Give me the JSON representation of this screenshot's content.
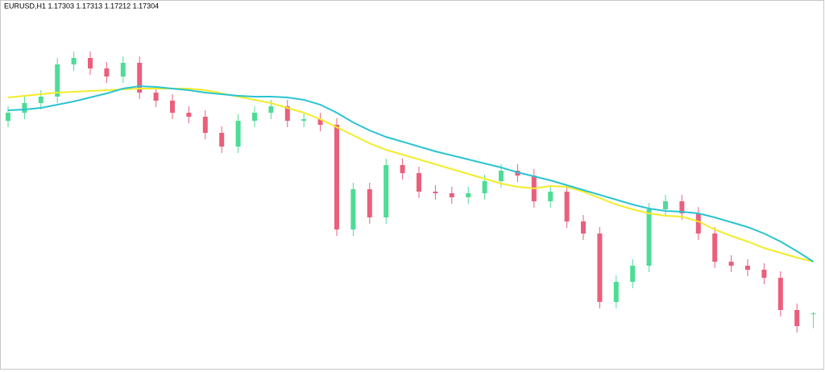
{
  "chart_data": {
    "type": "candlestick",
    "title": "EURUSD,H1  1.17303 1.17313 1.17212 1.17304",
    "up_color": "#4ddc96",
    "down_color": "#ea5f7c",
    "ylim": [
      1.1695,
      1.1925
    ],
    "open": [
      1.185,
      1.1855,
      1.1861,
      1.1865,
      1.1885,
      1.1889,
      1.18825,
      1.18775,
      1.1886,
      1.18675,
      1.18625,
      1.1855,
      1.18525,
      1.18425,
      1.1834,
      1.185,
      1.1855,
      1.1859,
      1.185,
      1.1851,
      1.18475,
      1.17825,
      1.18075,
      1.179,
      1.18225,
      1.18175,
      1.1806,
      1.1805,
      1.18025,
      1.1805,
      1.18125,
      1.1819,
      1.1816,
      1.18,
      1.1806,
      1.17875,
      1.178,
      1.17375,
      1.175,
      1.176,
      1.1795,
      1.18,
      1.17925,
      1.178,
      1.17625,
      1.176,
      1.17575,
      1.17525,
      1.17325,
      1.17303
    ],
    "high": [
      1.1859,
      1.1865,
      1.1869,
      1.1889,
      1.1893,
      1.1893,
      1.18865,
      1.189,
      1.189,
      1.18715,
      1.18665,
      1.1859,
      1.18565,
      1.18465,
      1.1854,
      1.1859,
      1.1863,
      1.1863,
      1.1855,
      1.1855,
      1.18515,
      1.18115,
      1.18115,
      1.18265,
      1.18265,
      1.18215,
      1.181,
      1.1809,
      1.1809,
      1.18165,
      1.1823,
      1.1823,
      1.182,
      1.181,
      1.181,
      1.17915,
      1.1784,
      1.1754,
      1.1764,
      1.1799,
      1.1804,
      1.1804,
      1.17965,
      1.1784,
      1.17665,
      1.1764,
      1.17615,
      1.17565,
      1.17365,
      1.17313
    ],
    "low": [
      1.1846,
      1.1851,
      1.1857,
      1.1861,
      1.1881,
      1.18785,
      1.18735,
      1.18735,
      1.18635,
      1.18585,
      1.1851,
      1.18485,
      1.18385,
      1.183,
      1.183,
      1.1846,
      1.1851,
      1.1846,
      1.1846,
      1.18435,
      1.17785,
      1.17785,
      1.1786,
      1.1786,
      1.18135,
      1.1802,
      1.1801,
      1.17985,
      1.17985,
      1.1801,
      1.18085,
      1.1812,
      1.1796,
      1.1796,
      1.17835,
      1.1776,
      1.17335,
      1.17335,
      1.1746,
      1.1756,
      1.1791,
      1.17885,
      1.1776,
      1.17585,
      1.1756,
      1.17535,
      1.17485,
      1.17285,
      1.17185,
      1.17212
    ],
    "close": [
      1.1855,
      1.1861,
      1.1865,
      1.1885,
      1.1889,
      1.18825,
      1.18775,
      1.1886,
      1.18675,
      1.18625,
      1.1855,
      1.18525,
      1.18425,
      1.1834,
      1.185,
      1.1855,
      1.1859,
      1.185,
      1.1851,
      1.18475,
      1.17825,
      1.18075,
      1.179,
      1.18225,
      1.18175,
      1.1806,
      1.1805,
      1.18025,
      1.1805,
      1.18125,
      1.1819,
      1.1816,
      1.18,
      1.1806,
      1.17875,
      1.178,
      1.17375,
      1.175,
      1.176,
      1.1795,
      1.18,
      1.17925,
      1.178,
      1.17625,
      1.176,
      1.17575,
      1.17525,
      1.17325,
      1.17225,
      1.17304
    ],
    "series": [
      {
        "color": "#f2ec2a",
        "values": [
          1.18645,
          1.18655,
          1.18665,
          1.18675,
          1.1868,
          1.18685,
          1.1869,
          1.18695,
          1.187,
          1.187,
          1.187,
          1.187,
          1.1869,
          1.1867,
          1.1865,
          1.1863,
          1.1861,
          1.1858,
          1.1855,
          1.1851,
          1.1846,
          1.1841,
          1.1836,
          1.1832,
          1.1829,
          1.1826,
          1.1823,
          1.182,
          1.1817,
          1.1814,
          1.1811,
          1.1809,
          1.1808,
          1.18095,
          1.1809,
          1.1806,
          1.1802,
          1.1798,
          1.1795,
          1.17925,
          1.1791,
          1.17905,
          1.17875,
          1.17825,
          1.17785,
          1.1775,
          1.1771,
          1.1768,
          1.1765,
          1.17625
        ]
      },
      {
        "color": "#2bc4d0",
        "values": [
          1.18565,
          1.1857,
          1.1858,
          1.186,
          1.1862,
          1.18645,
          1.1867,
          1.187,
          1.18715,
          1.1871,
          1.187,
          1.1869,
          1.18675,
          1.18665,
          1.18655,
          1.1865,
          1.1865,
          1.18645,
          1.1863,
          1.186,
          1.1855,
          1.1849,
          1.1844,
          1.184,
          1.1837,
          1.1834,
          1.1831,
          1.18285,
          1.1826,
          1.18235,
          1.1821,
          1.1818,
          1.18155,
          1.1813,
          1.181,
          1.1807,
          1.1804,
          1.1801,
          1.1798,
          1.17955,
          1.1794,
          1.17935,
          1.17925,
          1.179,
          1.1787,
          1.1784,
          1.178,
          1.1775,
          1.1769,
          1.17625
        ]
      }
    ]
  }
}
